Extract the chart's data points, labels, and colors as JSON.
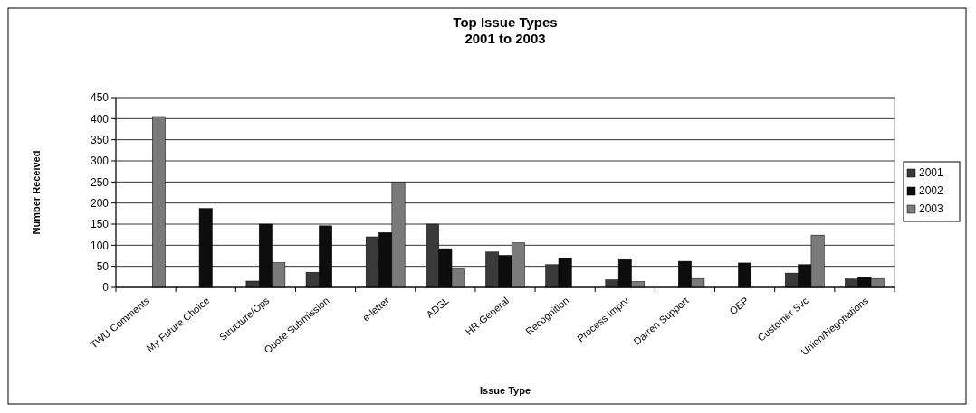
{
  "chart_data": {
    "type": "bar",
    "title": "Top Issue Types\n2001 to 2003",
    "xlabel": "Issue Type",
    "ylabel": "Number Received",
    "categories": [
      "TWU Comments",
      "My Future Choice",
      "Structure/Ops",
      "Quote Submission",
      "e-letter",
      "ADSL",
      "HR-General",
      "Recognition",
      "Process Imprv",
      "Darren Support",
      "OEP",
      "Customer Svc",
      "Union/Negotiations"
    ],
    "series": [
      {
        "name": "2001",
        "color": "#3a3a3a",
        "values": [
          null,
          null,
          15,
          36,
          120,
          150,
          84,
          54,
          18,
          null,
          null,
          34,
          20
        ]
      },
      {
        "name": "2002",
        "color": "#0d0d0d",
        "values": [
          null,
          187,
          150,
          146,
          130,
          92,
          76,
          70,
          66,
          62,
          58,
          54,
          25
        ]
      },
      {
        "name": "2003",
        "color": "#7a7a7a",
        "values": [
          405,
          null,
          59,
          null,
          250,
          45,
          106,
          null,
          14,
          21,
          null,
          124,
          21
        ]
      }
    ],
    "ylim": [
      0,
      450
    ],
    "yticks": [
      0,
      50,
      100,
      150,
      200,
      250,
      300,
      350,
      400,
      450
    ],
    "grid": "y",
    "legend": "right"
  }
}
